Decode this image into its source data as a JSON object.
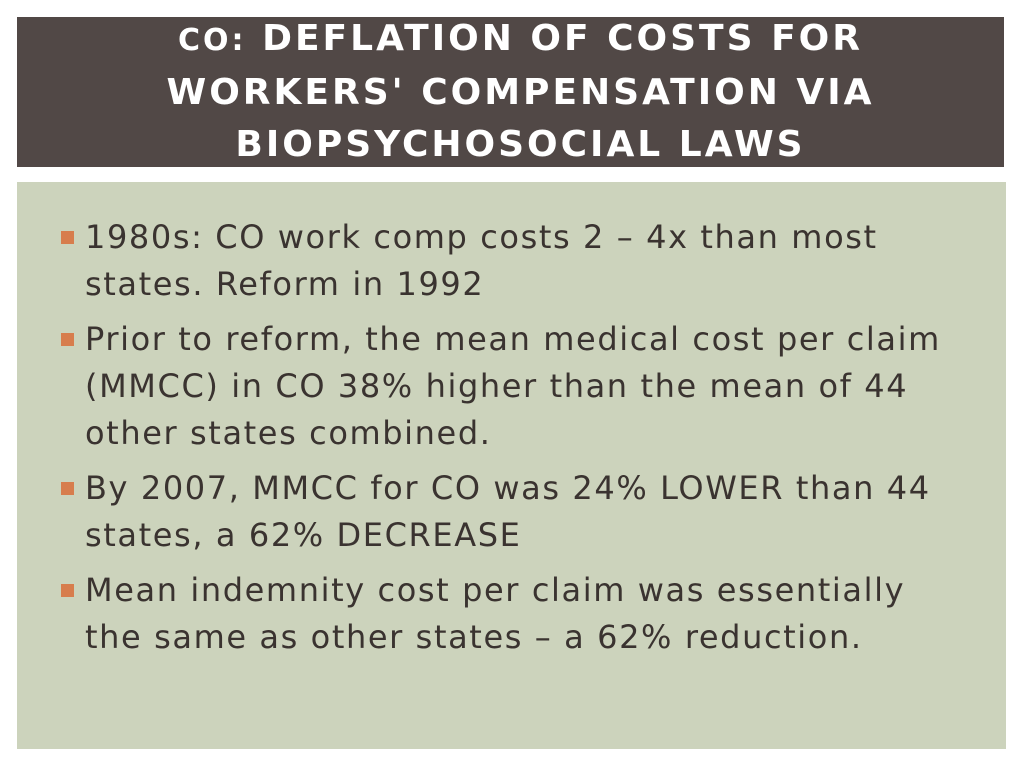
{
  "slide": {
    "title_prefix": "CO:",
    "title_rest": " DEFLATION OF COSTS FOR WORKERS' COMPENSATION VIA BIOPSYCHOSOCIAL LAWS",
    "colors": {
      "title_background": "#514846",
      "content_background": "#ccd3bc",
      "bullet_accent": "#d77d4d",
      "body_text": "#3a3330"
    },
    "bullets": [
      {
        "text": "1980s: CO work comp costs 2 – 4x than most states.  Reform in 1992"
      },
      {
        "text": "Prior to reform, the mean medical cost per claim (MMCC) in CO 38% higher than the mean of 44 other states combined."
      },
      {
        "text": "By 2007, MMCC for CO was 24% LOWER than 44 states, a 62% DECREASE"
      },
      {
        "text": "Mean indemnity cost per claim was essentially the same as other states – a 62% reduction."
      }
    ]
  }
}
